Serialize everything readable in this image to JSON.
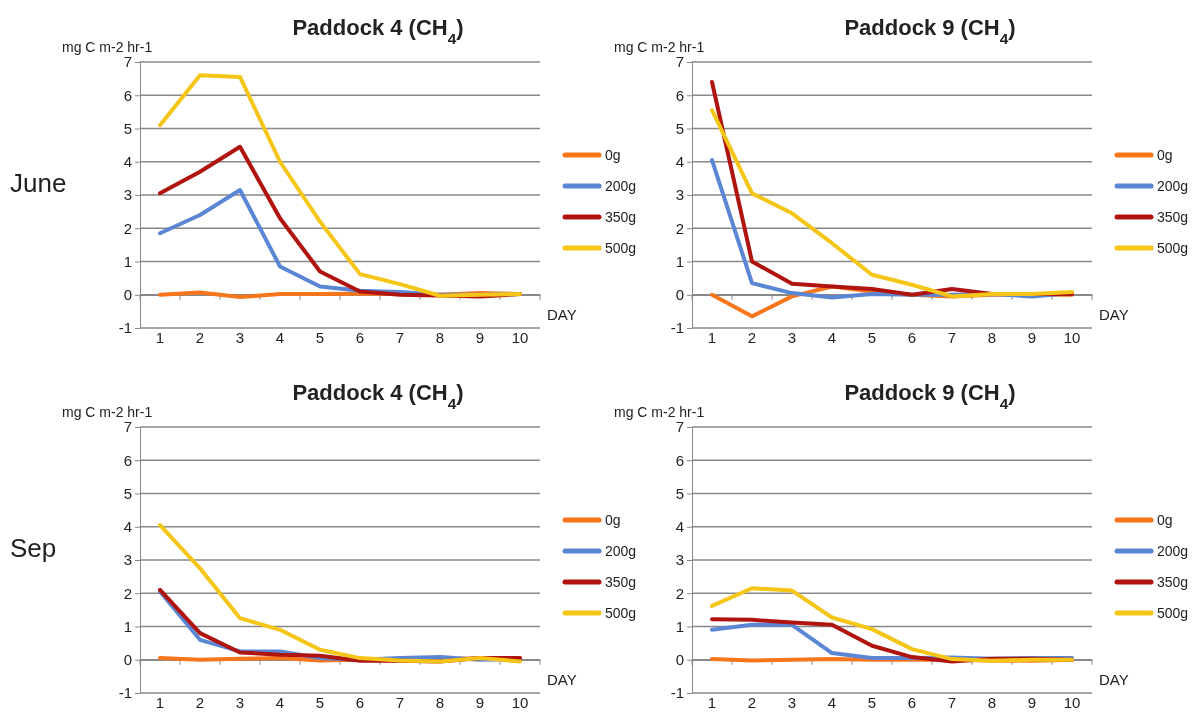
{
  "chart_data": [
    {
      "type": "line",
      "title": "Paddock 4 (CH$_{4}$)",
      "ylabel": "mg C m-2 hr-1",
      "xlabel": "DAY",
      "annotations": [
        "June"
      ],
      "categories": [
        "1",
        "2",
        "3",
        "4",
        "5",
        "6",
        "7",
        "8",
        "9",
        "10"
      ],
      "ylim": [
        -1,
        7
      ],
      "yticks": [
        -1,
        0,
        1,
        2,
        3,
        4,
        5,
        6,
        7
      ],
      "grid": "y",
      "legend": "right",
      "marker": "none",
      "series": [
        {
          "name": "0g",
          "color": "#f7761c",
          "values": [
            0,
            0.07,
            -0.07,
            0.02,
            0.02,
            0.03,
            0.03,
            0,
            0.05,
            0.02
          ]
        },
        {
          "name": "200g",
          "color": "#5b86d4",
          "values": [
            1.85,
            2.4,
            3.15,
            0.85,
            0.25,
            0.12,
            0.08,
            0,
            0,
            0.02
          ]
        },
        {
          "name": "350g",
          "color": "#b0140f",
          "values": [
            3.05,
            3.7,
            4.45,
            2.3,
            0.7,
            0.1,
            0,
            -0.02,
            -0.05,
            0.02
          ]
        },
        {
          "name": "500g",
          "color": "#f5c518",
          "values": [
            5.1,
            6.6,
            6.55,
            4.0,
            2.2,
            0.62,
            0.32,
            -0.03,
            0,
            0.02
          ]
        }
      ]
    },
    {
      "type": "line",
      "title": "Paddock 9 (CH$_{4}$)",
      "ylabel": "mg C m-2 hr-1",
      "xlabel": "DAY",
      "categories": [
        "1",
        "2",
        "3",
        "4",
        "5",
        "6",
        "7",
        "8",
        "9",
        "10"
      ],
      "ylim": [
        -1,
        7
      ],
      "yticks": [
        -1,
        0,
        1,
        2,
        3,
        4,
        5,
        6,
        7
      ],
      "grid": "y",
      "legend": "right",
      "marker": "none",
      "series": [
        {
          "name": "0g",
          "color": "#f7761c",
          "values": [
            0,
            -0.65,
            -0.05,
            0.25,
            0.1,
            0,
            -0.05,
            0,
            0,
            0
          ]
        },
        {
          "name": "200g",
          "color": "#5b86d4",
          "values": [
            4.05,
            0.35,
            0.05,
            -0.08,
            0.02,
            0,
            0,
            0.02,
            -0.05,
            0.05
          ]
        },
        {
          "name": "350g",
          "color": "#b0140f",
          "values": [
            6.4,
            1.0,
            0.33,
            0.25,
            0.17,
            0,
            0.17,
            0.02,
            0.02,
            0.02
          ]
        },
        {
          "name": "500g",
          "color": "#f5c518",
          "values": [
            5.55,
            3.05,
            2.45,
            1.55,
            0.6,
            0.3,
            -0.05,
            0.02,
            0.02,
            0.08
          ]
        }
      ]
    },
    {
      "type": "line",
      "title": "Paddock 4 (CH$_{4}$)",
      "ylabel": "mg C m-2 hr-1",
      "xlabel": "DAY",
      "annotations": [
        "Sep"
      ],
      "categories": [
        "1",
        "2",
        "3",
        "4",
        "5",
        "6",
        "7",
        "8",
        "9",
        "10"
      ],
      "ylim": [
        -1,
        7
      ],
      "yticks": [
        -1,
        0,
        1,
        2,
        3,
        4,
        5,
        6,
        7
      ],
      "grid": "y",
      "legend": "right",
      "marker": "none",
      "series": [
        {
          "name": "0g",
          "color": "#f7761c",
          "values": [
            0.05,
            0,
            0.03,
            0.05,
            -0.02,
            0,
            -0.02,
            0,
            0.05,
            0.05
          ]
        },
        {
          "name": "200g",
          "color": "#5b86d4",
          "values": [
            2.05,
            0.6,
            0.25,
            0.25,
            0.05,
            0,
            0.05,
            0.08,
            0,
            0.02
          ]
        },
        {
          "name": "350g",
          "color": "#b0140f",
          "values": [
            2.1,
            0.8,
            0.22,
            0.15,
            0.12,
            -0.03,
            -0.03,
            -0.05,
            0.05,
            0.05
          ]
        },
        {
          "name": "500g",
          "color": "#f5c518",
          "values": [
            4.05,
            2.75,
            1.25,
            0.9,
            0.3,
            0.05,
            -0.02,
            -0.05,
            0.05,
            -0.05
          ]
        }
      ]
    },
    {
      "type": "line",
      "title": "Paddock 9 (CH$_{4}$)",
      "ylabel": "mg C m-2 hr-1",
      "xlabel": "DAY",
      "categories": [
        "1",
        "2",
        "3",
        "4",
        "5",
        "6",
        "7",
        "8",
        "9",
        "10"
      ],
      "ylim": [
        -1,
        7
      ],
      "yticks": [
        -1,
        0,
        1,
        2,
        3,
        4,
        5,
        6,
        7
      ],
      "grid": "y",
      "legend": "right",
      "marker": "none",
      "series": [
        {
          "name": "0g",
          "color": "#f7761c",
          "values": [
            0.02,
            -0.02,
            0,
            0.02,
            0,
            0,
            0,
            -0.02,
            -0.03,
            0
          ]
        },
        {
          "name": "200g",
          "color": "#5b86d4",
          "values": [
            0.9,
            1.05,
            1.05,
            0.2,
            0.05,
            0.05,
            0.07,
            0.03,
            0.05,
            0.05
          ]
        },
        {
          "name": "350g",
          "color": "#b0140f",
          "values": [
            1.22,
            1.2,
            1.12,
            1.05,
            0.42,
            0.08,
            -0.05,
            0.03,
            0.03,
            0
          ]
        },
        {
          "name": "500g",
          "color": "#f5c518",
          "values": [
            1.62,
            2.15,
            2.08,
            1.27,
            0.92,
            0.32,
            0.02,
            -0.03,
            0,
            0
          ]
        }
      ]
    }
  ]
}
